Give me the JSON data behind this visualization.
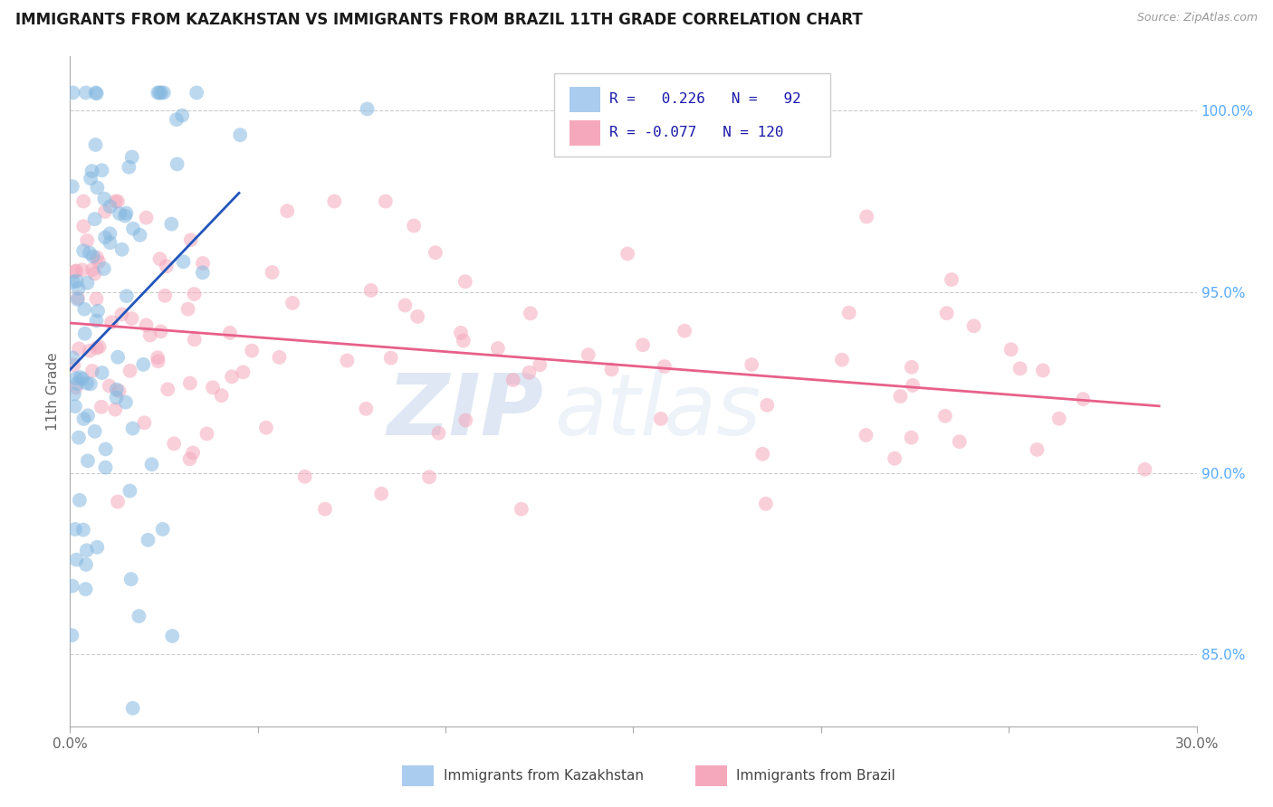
{
  "title": "IMMIGRANTS FROM KAZAKHSTAN VS IMMIGRANTS FROM BRAZIL 11TH GRADE CORRELATION CHART",
  "source": "Source: ZipAtlas.com",
  "ylabel": "11th Grade",
  "xlim": [
    0.0,
    30.0
  ],
  "ylim": [
    83.0,
    101.5
  ],
  "kazakhstan_color": "#85b8e0",
  "brazil_color": "#f5a8bc",
  "kazakhstan_trend_color": "#2255bb",
  "brazil_trend_color": "#e8608a",
  "watermark_zip": "ZIP",
  "watermark_atlas": "atlas",
  "background_color": "#ffffff",
  "grid_color": "#cccccc",
  "scatter_alpha": 0.55,
  "scatter_size": 130,
  "kaz_seed": 77,
  "bra_seed": 42
}
